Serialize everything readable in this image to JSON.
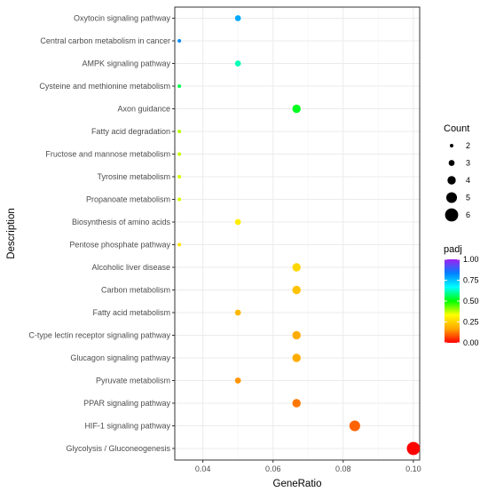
{
  "chart_data": {
    "type": "scatter",
    "xlabel": "GeneRatio",
    "ylabel": "Description",
    "xlim": [
      0.032,
      0.1018
    ],
    "x_ticks": [
      "0.04",
      "0.06",
      "0.08",
      "0.10"
    ],
    "x_tick_values": [
      0.04,
      0.06,
      0.08,
      0.1
    ],
    "grid": "on",
    "categories": [
      "Oxytocin signaling pathway",
      "Central carbon metabolism in cancer",
      "AMPK signaling pathway",
      "Cysteine and methionine metabolism",
      "Axon guidance",
      "Fatty acid degradation",
      "Fructose and mannose metabolism",
      "Tyrosine metabolism",
      "Propanoate metabolism",
      "Biosynthesis of amino acids",
      "Pentose phosphate pathway",
      "Alcoholic liver disease",
      "Carbon metabolism",
      "Fatty acid metabolism",
      "C-type lectin receptor signaling pathway",
      "Glucagon signaling pathway",
      "Pyruvate metabolism",
      "PPAR signaling pathway",
      "HIF-1 signaling pathway",
      "Glycolysis / Gluconeogenesis"
    ],
    "points": [
      {
        "x": 0.05,
        "count": 3,
        "padj": 0.78
      },
      {
        "x": 0.0333,
        "count": 2,
        "padj": 0.82
      },
      {
        "x": 0.05,
        "count": 3,
        "padj": 0.62
      },
      {
        "x": 0.0333,
        "count": 2,
        "padj": 0.55
      },
      {
        "x": 0.0667,
        "count": 4,
        "padj": 0.52
      },
      {
        "x": 0.0333,
        "count": 2,
        "padj": 0.38
      },
      {
        "x": 0.0333,
        "count": 2,
        "padj": 0.37
      },
      {
        "x": 0.0333,
        "count": 2,
        "padj": 0.36
      },
      {
        "x": 0.0333,
        "count": 2,
        "padj": 0.36
      },
      {
        "x": 0.05,
        "count": 3,
        "padj": 0.3
      },
      {
        "x": 0.0333,
        "count": 2,
        "padj": 0.28
      },
      {
        "x": 0.0667,
        "count": 4,
        "padj": 0.26
      },
      {
        "x": 0.0667,
        "count": 4,
        "padj": 0.22
      },
      {
        "x": 0.05,
        "count": 3,
        "padj": 0.2
      },
      {
        "x": 0.0667,
        "count": 4,
        "padj": 0.18
      },
      {
        "x": 0.0667,
        "count": 4,
        "padj": 0.18
      },
      {
        "x": 0.05,
        "count": 3,
        "padj": 0.15
      },
      {
        "x": 0.0667,
        "count": 4,
        "padj": 0.12
      },
      {
        "x": 0.0833,
        "count": 5,
        "padj": 0.1
      },
      {
        "x": 0.1,
        "count": 6,
        "padj": 0.0
      }
    ],
    "legend_count": {
      "title": "Count",
      "values": [
        2,
        3,
        4,
        5,
        6
      ],
      "labels": [
        "2",
        "3",
        "4",
        "5",
        "6"
      ]
    },
    "legend_padj": {
      "title": "padj",
      "labels": [
        "1.00",
        "0.75",
        "0.50",
        "0.25",
        "0.00"
      ],
      "values": [
        1.0,
        0.75,
        0.5,
        0.25,
        0.0
      ],
      "colors": [
        "#ff0000",
        "#ffa500",
        "#ffff00",
        "#00ff00",
        "#00ffff",
        "#0080ff",
        "#a020f0"
      ]
    },
    "legend_placement": "right"
  }
}
